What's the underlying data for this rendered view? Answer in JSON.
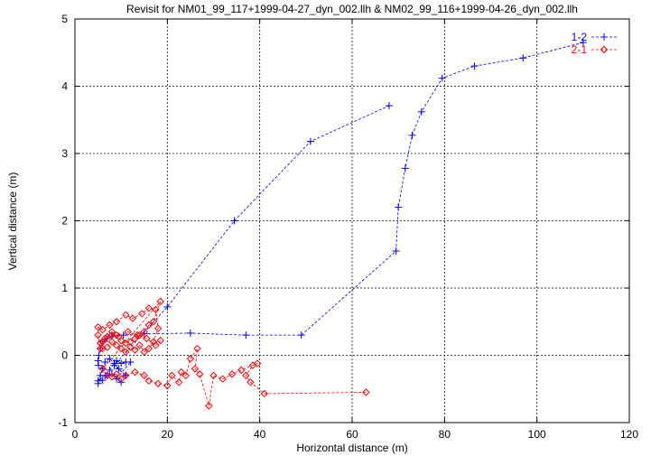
{
  "chart_data": {
    "type": "scatter",
    "title": "Revisit for NM01_99_117+1999-04-27_dyn_002.llh & NM02_99_116+1999-04-26_dyn_002.llh",
    "xlabel": "Horizontal distance (m)",
    "ylabel": "Vertical distance (m)",
    "xlim": [
      0,
      120
    ],
    "ylim": [
      -1,
      5
    ],
    "xticks": [
      "0",
      "20",
      "40",
      "60",
      "80",
      "100",
      "120"
    ],
    "yticks": [
      "-1",
      "0",
      "1",
      "2",
      "3",
      "4",
      "5"
    ],
    "grid": true,
    "legend_position": "top-right",
    "series": [
      {
        "name": "1-2",
        "color": "#0000ff",
        "marker": "plus",
        "line": "dashed",
        "points": [
          [
            110,
            4.65
          ],
          [
            97,
            4.42
          ],
          [
            86.5,
            4.3
          ],
          [
            79.5,
            4.12
          ],
          [
            75,
            3.62
          ],
          [
            73,
            3.27
          ],
          [
            71.5,
            2.78
          ],
          [
            70,
            2.2
          ],
          [
            69.5,
            1.55
          ],
          [
            49,
            0.3
          ],
          [
            37,
            0.3
          ],
          [
            25,
            0.33
          ],
          [
            15,
            0.32
          ],
          [
            10.5,
            0.3
          ],
          [
            8,
            0.29
          ],
          [
            7,
            0.25
          ],
          [
            6,
            0.2
          ],
          [
            5.5,
            0.1
          ],
          [
            5.2,
            0.0
          ],
          [
            5,
            -0.08
          ],
          [
            5.1,
            -0.15
          ],
          [
            6,
            -0.2
          ],
          [
            5.5,
            -0.3
          ],
          [
            5,
            -0.38
          ],
          [
            6.5,
            -0.3
          ],
          [
            7.5,
            -0.22
          ],
          [
            8.5,
            -0.12
          ],
          [
            9,
            -0.08
          ],
          [
            10,
            -0.12
          ],
          [
            11,
            -0.1
          ],
          [
            12,
            -0.1
          ],
          [
            9,
            -0.35
          ],
          [
            10,
            -0.4
          ],
          [
            8,
            -0.28
          ],
          [
            7,
            -0.3
          ],
          [
            6,
            -0.37
          ],
          [
            5,
            -0.42
          ],
          [
            6.5,
            -0.1
          ],
          [
            7.5,
            -0.05
          ],
          [
            9.5,
            -0.2
          ],
          [
            11,
            -0.3
          ],
          [
            8.5,
            -0.15
          ],
          [
            20,
            0.72
          ],
          [
            34.5,
            2.0
          ],
          [
            51,
            3.18
          ],
          [
            68,
            3.71
          ]
        ]
      },
      {
        "name": "2-1",
        "color": "#ff0000",
        "marker": "diamond",
        "line": "dashed",
        "points": [
          [
            63,
            -0.55
          ],
          [
            41,
            -0.57
          ],
          [
            38,
            -0.4
          ],
          [
            37,
            -0.3
          ],
          [
            38.5,
            -0.15
          ],
          [
            39.5,
            -0.12
          ],
          [
            36,
            -0.22
          ],
          [
            34,
            -0.28
          ],
          [
            32,
            -0.35
          ],
          [
            30,
            -0.3
          ],
          [
            29,
            -0.75
          ],
          [
            27,
            -0.28
          ],
          [
            26,
            -0.2
          ],
          [
            26.5,
            0.1
          ],
          [
            25,
            -0.05
          ],
          [
            24,
            -0.3
          ],
          [
            23,
            -0.25
          ],
          [
            22.5,
            -0.4
          ],
          [
            21,
            -0.3
          ],
          [
            20,
            -0.45
          ],
          [
            18,
            -0.42
          ],
          [
            16,
            -0.38
          ],
          [
            15,
            -0.3
          ],
          [
            13,
            -0.25
          ],
          [
            11,
            -0.3
          ],
          [
            10,
            -0.35
          ],
          [
            9,
            -0.28
          ],
          [
            8,
            -0.32
          ],
          [
            7,
            -0.3
          ],
          [
            6,
            -0.2
          ],
          [
            18.5,
            0.8
          ],
          [
            17,
            0.5
          ],
          [
            16,
            0.45
          ],
          [
            15,
            0.35
          ],
          [
            14,
            0.3
          ],
          [
            13,
            0.25
          ],
          [
            12,
            0.2
          ],
          [
            11,
            0.18
          ],
          [
            10,
            0.22
          ],
          [
            9,
            0.3
          ],
          [
            8,
            0.35
          ],
          [
            7,
            0.28
          ],
          [
            6,
            0.2
          ],
          [
            5.5,
            0.1
          ],
          [
            5,
            0.3
          ],
          [
            5,
            0.42
          ],
          [
            6,
            0.38
          ],
          [
            7.5,
            0.45
          ],
          [
            9,
            0.5
          ],
          [
            11,
            0.6
          ],
          [
            12.5,
            0.55
          ],
          [
            14.5,
            0.62
          ],
          [
            16,
            0.7
          ],
          [
            17.5,
            0.68
          ],
          [
            18,
            0.4
          ],
          [
            17,
            0.2
          ],
          [
            16,
            0.1
          ],
          [
            15,
            0.05
          ],
          [
            14,
            0.15
          ],
          [
            13,
            0.08
          ],
          [
            12,
            0.12
          ],
          [
            11,
            0.05
          ],
          [
            10,
            0.1
          ],
          [
            9,
            0.15
          ],
          [
            8,
            0.2
          ],
          [
            7,
            0.12
          ],
          [
            6,
            0.1
          ],
          [
            5.5,
            0.18
          ],
          [
            6.5,
            0.25
          ],
          [
            8,
            0.3
          ],
          [
            9.5,
            0.28
          ],
          [
            11.5,
            0.35
          ],
          [
            13.5,
            0.3
          ],
          [
            15.5,
            0.25
          ],
          [
            17.5,
            0.15
          ],
          [
            18.5,
            0.22
          ]
        ]
      }
    ]
  }
}
